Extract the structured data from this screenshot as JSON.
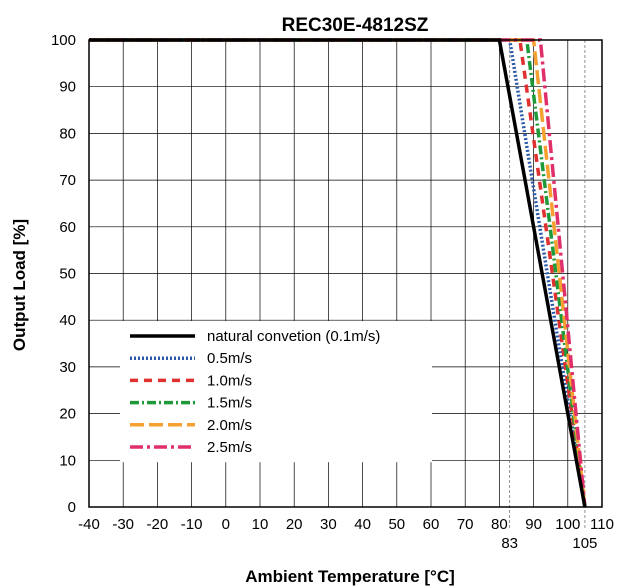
{
  "chart_data": {
    "type": "line",
    "title": "REC30E-4812SZ",
    "xlabel": "Ambient Temperature [°C]",
    "ylabel": "Output Load [%]",
    "xlim": [
      -40,
      110
    ],
    "ylim": [
      0,
      100
    ],
    "xticks": [
      -40,
      -30,
      -20,
      -10,
      0,
      10,
      20,
      30,
      40,
      50,
      60,
      70,
      80,
      90,
      100,
      110
    ],
    "yticks": [
      0,
      10,
      20,
      30,
      40,
      50,
      60,
      70,
      80,
      90,
      100
    ],
    "extra_xticks": [
      83,
      105
    ],
    "reference_lines_x": [
      83,
      105
    ],
    "grid": true,
    "legend_position": "lower-left",
    "series": [
      {
        "name": "natural convetion (0.1m/s)",
        "color": "#000000",
        "style": "solid",
        "x": [
          -40,
          80,
          105
        ],
        "y": [
          100,
          100,
          0
        ]
      },
      {
        "name": "0.5m/s",
        "color": "#2b5aa8",
        "style": "dotted",
        "x": [
          -40,
          83,
          105
        ],
        "y": [
          100,
          100,
          0
        ]
      },
      {
        "name": "1.0m/s",
        "color": "#e03030",
        "style": "dashed",
        "x": [
          -40,
          86,
          105
        ],
        "y": [
          100,
          100,
          0
        ]
      },
      {
        "name": "1.5m/s",
        "color": "#1f9a3a",
        "style": "dashdot",
        "x": [
          -40,
          88,
          105
        ],
        "y": [
          100,
          100,
          0
        ]
      },
      {
        "name": "2.0m/s",
        "color": "#f5a030",
        "style": "longdash",
        "x": [
          -40,
          90,
          105
        ],
        "y": [
          100,
          100,
          0
        ]
      },
      {
        "name": "2.5m/s",
        "color": "#e0306a",
        "style": "longdashdot",
        "x": [
          -40,
          92,
          105
        ],
        "y": [
          100,
          100,
          0
        ]
      }
    ]
  }
}
